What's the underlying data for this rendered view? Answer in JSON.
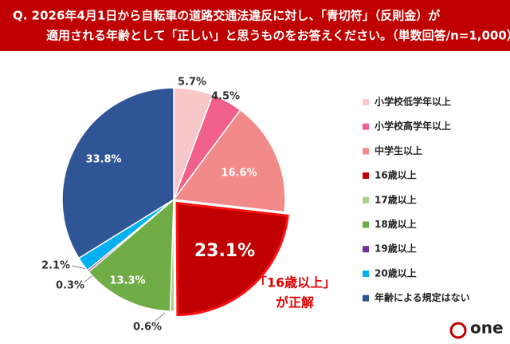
{
  "chart_data": {
    "type": "pie",
    "title": [
      "Q. 2026年4月1日から自転車の道路交通法違反に対し、「青切符」（反則金）が",
      "適用される年齢として「正しい」と思うものをお答えください。（単数回答/n=1,000）"
    ],
    "categories": [
      "小学校低学年以上",
      "小学校高学年以上",
      "中学生以上",
      "16歳以上",
      "17歳以上",
      "18歳以上",
      "19歳以上",
      "20歳以上",
      "年齢による規定はない"
    ],
    "values": [
      5.7,
      4.5,
      16.6,
      23.1,
      0.6,
      13.3,
      0.3,
      2.1,
      33.8
    ],
    "value_labels": [
      "5.7%",
      "4.5%",
      "16.6%",
      "23.1%",
      "0.6%",
      "13.3%",
      "0.3%",
      "2.1%",
      "33.8%"
    ],
    "colors": [
      "#f8c8c8",
      "#f0608a",
      "#f38a8a",
      "#c00000",
      "#a9d18e",
      "#70ad47",
      "#7030a0",
      "#00b0f0",
      "#2f5597"
    ],
    "annotation": [
      "「16歳以上」",
      "が正解"
    ],
    "logo": "one"
  }
}
